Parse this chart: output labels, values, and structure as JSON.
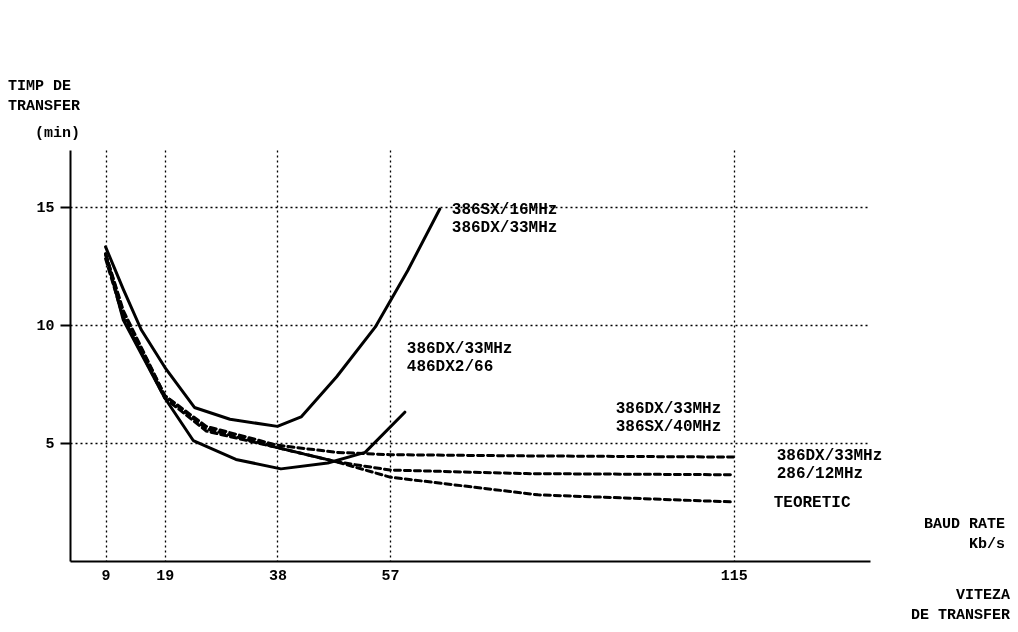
{
  "chart_data": {
    "type": "line",
    "ylabel": "TIMP DE\nTRANSFER",
    "xlabel": "VITEZA\nDE TRANSFER",
    "annotations": [
      "(min)",
      "BAUD RATE\nKb/s"
    ],
    "xlim": [
      3,
      138
    ],
    "xticks": [
      9,
      19,
      38,
      57,
      115
    ],
    "ylim": [
      0,
      17.4
    ],
    "yticks": [
      5,
      10,
      15
    ],
    "grid": true,
    "series": [
      {
        "name": "386SX/16MHz\n386DX/33MHz",
        "color": "#000000",
        "line_style": "solid",
        "x": [
          9,
          12,
          15,
          19,
          24,
          30,
          38,
          42,
          48,
          54.5,
          60,
          65.4
        ],
        "values": [
          13.3,
          11.5,
          9.8,
          8.2,
          6.5,
          6.0,
          5.7,
          6.1,
          7.8,
          9.9,
          12.3,
          14.9
        ]
      },
      {
        "name": "386DX/33MHz\n486DX2/66",
        "color": "#000000",
        "line_style": "solid",
        "x": [
          9,
          12,
          19,
          23.8,
          31,
          38.6,
          46.5,
          52.8,
          59.5
        ],
        "values": [
          13,
          10.2,
          6.9,
          5.1,
          4.3,
          3.9,
          4.15,
          4.6,
          6.3
        ]
      },
      {
        "name": "386DX/33MHz\n386SX/40MHz",
        "color": "#000000",
        "line_style": "dashed",
        "x": [
          9,
          12,
          19,
          26,
          38,
          48,
          57,
          80,
          115
        ],
        "values": [
          13,
          10.5,
          7.0,
          5.7,
          4.9,
          4.6,
          4.5,
          4.45,
          4.4
        ]
      },
      {
        "name": "386DX/33MHz\n286/12MHz",
        "color": "#000000",
        "line_style": "dashed",
        "x": [
          9,
          12,
          19,
          26,
          38,
          48,
          57,
          80,
          115
        ],
        "values": [
          13,
          10.6,
          7.0,
          5.6,
          4.8,
          4.2,
          3.85,
          3.7,
          3.65
        ]
      },
      {
        "name": "TEORETIC",
        "color": "#000000",
        "line_style": "dashed",
        "x": [
          9,
          12,
          19,
          26,
          38,
          48,
          57,
          82,
          115
        ],
        "values": [
          12.8,
          10.3,
          6.9,
          5.5,
          4.8,
          4.2,
          3.55,
          2.8,
          2.5
        ]
      }
    ]
  }
}
